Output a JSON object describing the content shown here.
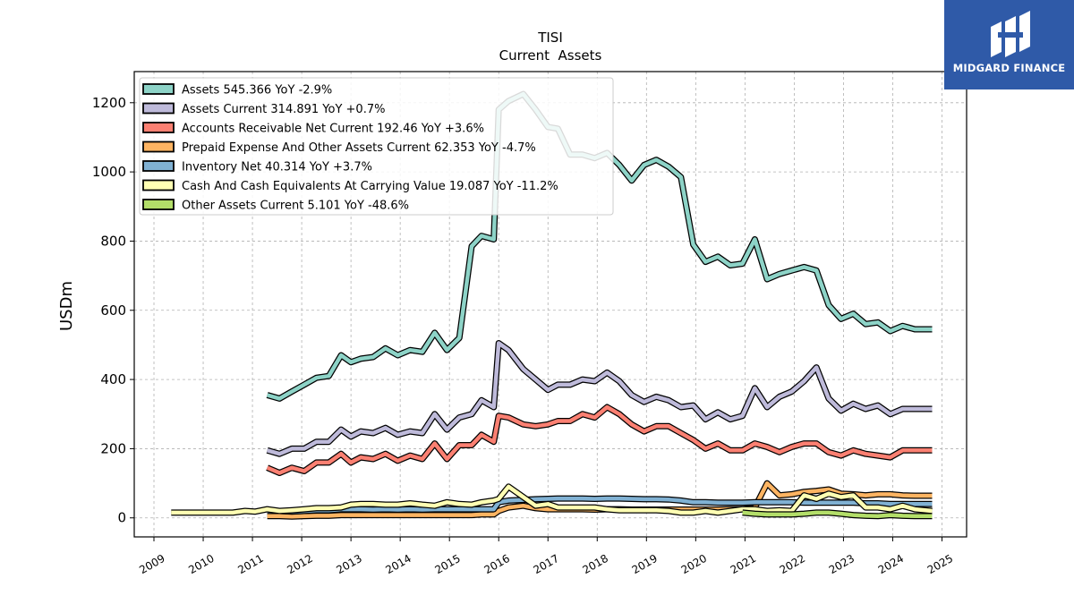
{
  "brand": {
    "name": "MIDGARD FINANCE",
    "color": "#2f5aa8"
  },
  "chart_data": {
    "type": "line",
    "title": "TISI",
    "subtitle": "Current  Assets",
    "ylabel": "USDm",
    "xlim": [
      2008.6,
      2025.5
    ],
    "ylim": [
      -55,
      1290
    ],
    "xticks": [
      "2009",
      "2010",
      "2011",
      "2012",
      "2013",
      "2014",
      "2015",
      "2016",
      "2017",
      "2018",
      "2019",
      "2020",
      "2021",
      "2022",
      "2023",
      "2024",
      "2025"
    ],
    "yticks": [
      0,
      200,
      400,
      600,
      800,
      1000,
      1200
    ],
    "grid": true,
    "legend_position": "top-left",
    "series": [
      {
        "name": "Assets",
        "legend": "Assets  545.366 YoY -2.9%",
        "color": "#8dd3c7",
        "x": [
          2011.3,
          2011.55,
          2011.8,
          2012.05,
          2012.3,
          2012.55,
          2012.8,
          2013.0,
          2013.2,
          2013.45,
          2013.7,
          2013.95,
          2014.2,
          2014.45,
          2014.7,
          2014.95,
          2015.2,
          2015.45,
          2015.65,
          2015.9,
          2016.0,
          2016.2,
          2016.5,
          2016.75,
          2017.0,
          2017.2,
          2017.45,
          2017.7,
          2017.95,
          2018.2,
          2018.45,
          2018.7,
          2018.95,
          2019.2,
          2019.45,
          2019.7,
          2019.95,
          2020.2,
          2020.45,
          2020.7,
          2020.95,
          2021.2,
          2021.45,
          2021.7,
          2021.95,
          2022.2,
          2022.45,
          2022.7,
          2022.95,
          2023.2,
          2023.45,
          2023.7,
          2023.95,
          2024.2,
          2024.45,
          2024.8
        ],
        "y": [
          355,
          345,
          365,
          385,
          405,
          410,
          470,
          450,
          460,
          465,
          490,
          470,
          485,
          480,
          535,
          485,
          520,
          785,
          815,
          805,
          1180,
          1205,
          1225,
          1180,
          1130,
          1125,
          1050,
          1050,
          1040,
          1055,
          1020,
          975,
          1020,
          1035,
          1015,
          985,
          790,
          740,
          755,
          730,
          735,
          805,
          690,
          705,
          715,
          725,
          715,
          615,
          575,
          590,
          560,
          565,
          540,
          555,
          545,
          545
        ]
      },
      {
        "name": "Assets Current",
        "legend": "Assets Current  314.891 YoY +0.7%",
        "color": "#bebada",
        "x": [
          2011.3,
          2011.55,
          2011.8,
          2012.05,
          2012.3,
          2012.55,
          2012.8,
          2013.0,
          2013.2,
          2013.45,
          2013.7,
          2013.95,
          2014.2,
          2014.45,
          2014.7,
          2014.95,
          2015.2,
          2015.45,
          2015.65,
          2015.9,
          2016.0,
          2016.2,
          2016.5,
          2016.75,
          2017.0,
          2017.2,
          2017.45,
          2017.7,
          2017.95,
          2018.2,
          2018.45,
          2018.7,
          2018.95,
          2019.2,
          2019.45,
          2019.7,
          2019.95,
          2020.2,
          2020.45,
          2020.7,
          2020.95,
          2021.2,
          2021.45,
          2021.7,
          2021.95,
          2022.2,
          2022.45,
          2022.7,
          2022.95,
          2023.2,
          2023.45,
          2023.7,
          2023.95,
          2024.2,
          2024.45,
          2024.8
        ],
        "y": [
          195,
          185,
          200,
          200,
          220,
          220,
          255,
          235,
          250,
          245,
          260,
          240,
          250,
          245,
          300,
          255,
          290,
          300,
          340,
          320,
          505,
          485,
          430,
          400,
          370,
          385,
          385,
          400,
          395,
          420,
          395,
          355,
          335,
          350,
          340,
          320,
          325,
          285,
          305,
          285,
          295,
          375,
          320,
          350,
          365,
          395,
          435,
          345,
          310,
          330,
          315,
          325,
          300,
          315,
          315,
          315
        ]
      },
      {
        "name": "Accounts Receivable Net Current",
        "legend": "Accounts Receivable Net Current  192.46 YoY +3.6%",
        "color": "#fb8072",
        "x": [
          2011.3,
          2011.55,
          2011.8,
          2012.05,
          2012.3,
          2012.55,
          2012.8,
          2013.0,
          2013.2,
          2013.45,
          2013.7,
          2013.95,
          2014.2,
          2014.45,
          2014.7,
          2014.95,
          2015.2,
          2015.45,
          2015.65,
          2015.9,
          2016.0,
          2016.2,
          2016.5,
          2016.75,
          2017.0,
          2017.2,
          2017.45,
          2017.7,
          2017.95,
          2018.2,
          2018.45,
          2018.7,
          2018.95,
          2019.2,
          2019.45,
          2019.7,
          2019.95,
          2020.2,
          2020.45,
          2020.7,
          2020.95,
          2021.2,
          2021.45,
          2021.7,
          2021.95,
          2022.2,
          2022.45,
          2022.7,
          2022.95,
          2023.2,
          2023.45,
          2023.7,
          2023.95,
          2024.2,
          2024.45,
          2024.8
        ],
        "y": [
          145,
          130,
          145,
          135,
          160,
          160,
          185,
          160,
          175,
          170,
          185,
          165,
          180,
          170,
          215,
          170,
          210,
          210,
          240,
          220,
          295,
          290,
          270,
          265,
          270,
          280,
          280,
          300,
          290,
          320,
          300,
          270,
          250,
          265,
          265,
          245,
          225,
          200,
          215,
          195,
          195,
          215,
          205,
          190,
          205,
          215,
          215,
          190,
          180,
          195,
          185,
          180,
          175,
          195,
          195,
          195
        ]
      },
      {
        "name": "Prepaid Expense And Other Assets Current",
        "legend": "Prepaid Expense And Other Assets Current  62.353 YoY -4.7%",
        "color": "#fdb462",
        "x": [
          2011.3,
          2011.55,
          2011.8,
          2012.05,
          2012.3,
          2012.55,
          2012.8,
          2013.0,
          2013.2,
          2013.45,
          2013.7,
          2013.95,
          2014.2,
          2014.45,
          2014.7,
          2014.95,
          2015.2,
          2015.45,
          2015.65,
          2015.9,
          2016.0,
          2016.2,
          2016.5,
          2016.75,
          2017.0,
          2017.2,
          2017.45,
          2017.7,
          2017.95,
          2018.2,
          2018.45,
          2018.7,
          2018.95,
          2019.2,
          2019.45,
          2019.7,
          2019.95,
          2020.2,
          2020.45,
          2020.7,
          2020.95,
          2021.2,
          2021.45,
          2021.7,
          2021.95,
          2022.2,
          2022.45,
          2022.7,
          2022.95,
          2023.2,
          2023.45,
          2023.7,
          2023.95,
          2024.2,
          2024.45,
          2024.8
        ],
        "y": [
          5,
          5,
          4,
          5,
          6,
          6,
          8,
          8,
          8,
          8,
          8,
          8,
          8,
          8,
          8,
          8,
          8,
          8,
          10,
          10,
          20,
          30,
          35,
          28,
          25,
          25,
          25,
          25,
          24,
          25,
          25,
          24,
          24,
          24,
          24,
          24,
          24,
          24,
          24,
          25,
          25,
          30,
          100,
          65,
          68,
          75,
          78,
          82,
          70,
          68,
          65,
          68,
          68,
          65,
          64,
          64
        ]
      },
      {
        "name": "Inventory Net",
        "legend": "Inventory Net  40.314 YoY +3.7%",
        "color": "#80b1d3",
        "x": [
          2011.3,
          2011.55,
          2011.8,
          2012.05,
          2012.3,
          2012.55,
          2012.8,
          2013.0,
          2013.2,
          2013.45,
          2013.7,
          2013.95,
          2014.2,
          2014.45,
          2014.7,
          2014.95,
          2015.2,
          2015.45,
          2015.65,
          2015.9,
          2016.0,
          2016.2,
          2016.5,
          2016.75,
          2017.0,
          2017.2,
          2017.45,
          2017.7,
          2017.95,
          2018.2,
          2018.45,
          2018.7,
          2018.95,
          2019.2,
          2019.45,
          2019.7,
          2019.95,
          2020.2,
          2020.45,
          2020.7,
          2020.95,
          2021.2,
          2021.45,
          2021.7,
          2021.95,
          2022.2,
          2022.45,
          2022.7,
          2022.95,
          2023.2,
          2023.45,
          2023.7,
          2023.95,
          2024.2,
          2024.45,
          2024.8
        ],
        "y": [
          20,
          20,
          18,
          20,
          22,
          22,
          25,
          25,
          25,
          24,
          25,
          24,
          25,
          24,
          25,
          25,
          25,
          25,
          25,
          25,
          45,
          50,
          52,
          54,
          55,
          56,
          56,
          56,
          55,
          56,
          56,
          55,
          54,
          54,
          53,
          50,
          45,
          45,
          44,
          44,
          44,
          45,
          45,
          45,
          45,
          44,
          44,
          44,
          44,
          44,
          42,
          42,
          40,
          40,
          40,
          40
        ]
      },
      {
        "name": "Cash And Cash Equivalents At Carrying Value",
        "legend": "Cash And Cash Equivalents At Carrying Value  19.087 YoY -11.2%",
        "color": "#ffffb3",
        "x": [
          2009.35,
          2009.6,
          2009.85,
          2010.1,
          2010.35,
          2010.6,
          2010.85,
          2011.05,
          2011.3,
          2011.55,
          2011.8,
          2012.05,
          2012.3,
          2012.55,
          2012.8,
          2013.0,
          2013.2,
          2013.45,
          2013.7,
          2013.95,
          2014.2,
          2014.45,
          2014.7,
          2014.95,
          2015.2,
          2015.45,
          2015.65,
          2015.9,
          2016.0,
          2016.2,
          2016.5,
          2016.75,
          2017.0,
          2017.2,
          2017.45,
          2017.7,
          2017.95,
          2018.2,
          2018.45,
          2018.7,
          2018.95,
          2019.2,
          2019.45,
          2019.7,
          2019.95,
          2020.2,
          2020.45,
          2020.7,
          2020.95,
          2021.2,
          2021.45,
          2021.7,
          2021.95,
          2022.2,
          2022.45,
          2022.7,
          2022.95,
          2023.2,
          2023.45,
          2023.7,
          2023.95,
          2024.2,
          2024.45,
          2024.8
        ],
        "y": [
          15,
          15,
          15,
          15,
          15,
          15,
          20,
          18,
          25,
          20,
          22,
          25,
          28,
          28,
          30,
          38,
          40,
          40,
          38,
          38,
          42,
          38,
          35,
          45,
          40,
          38,
          45,
          50,
          55,
          90,
          60,
          35,
          40,
          30,
          30,
          30,
          30,
          25,
          22,
          22,
          22,
          22,
          20,
          15,
          15,
          20,
          15,
          20,
          25,
          25,
          20,
          22,
          20,
          65,
          55,
          70,
          60,
          65,
          30,
          30,
          25,
          35,
          25,
          20
        ]
      },
      {
        "name": "Other Assets Current",
        "legend": "Other Assets Current  5.101 YoY -48.6%",
        "color": "#b3de69",
        "x": [
          2020.95,
          2021.2,
          2021.45,
          2021.7,
          2021.95,
          2022.2,
          2022.45,
          2022.7,
          2022.95,
          2023.2,
          2023.45,
          2023.7,
          2023.95,
          2024.2,
          2024.45,
          2024.8
        ],
        "y": [
          15,
          12,
          10,
          10,
          10,
          12,
          15,
          15,
          12,
          8,
          6,
          5,
          8,
          6,
          5,
          5
        ]
      }
    ]
  }
}
